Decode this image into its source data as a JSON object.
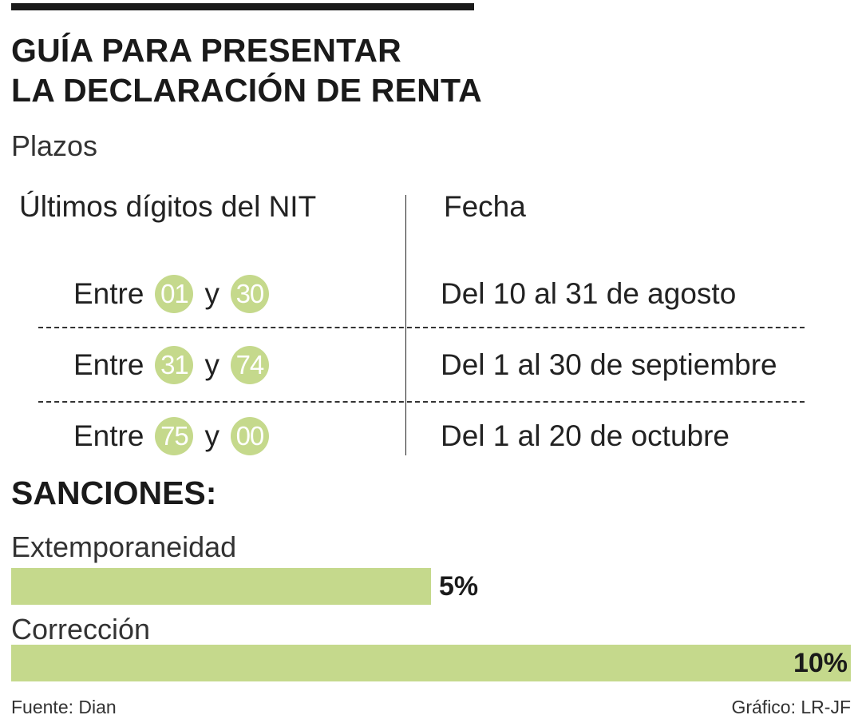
{
  "title_lines": [
    "GUÍA PARA PRESENTAR",
    "LA DECLARACIÓN DE RENTA"
  ],
  "subtitle": "Plazos",
  "table": {
    "headers": [
      "Últimos dígitos del NIT",
      "Fecha"
    ],
    "rows": [
      {
        "word": "Entre",
        "from": "01",
        "conj": "y",
        "to": "30",
        "date": "Del 10 al 31 de agosto"
      },
      {
        "word": "Entre",
        "from": "31",
        "conj": "y",
        "to": "74",
        "date": "Del 1 al 30 de septiembre"
      },
      {
        "word": "Entre",
        "from": "75",
        "conj": "y",
        "to": "00",
        "date": "Del 1 al 20 de octubre"
      }
    ]
  },
  "colors": {
    "accent_green": "#c5d98c",
    "text": "#1a1a1a"
  },
  "chart_data": {
    "type": "bar",
    "title": "SANCIONES:",
    "categories": [
      "Extemporaneidad",
      "Corrección"
    ],
    "values": [
      5,
      10
    ],
    "value_labels": [
      "5%",
      "10%"
    ],
    "xlim": [
      0,
      10
    ],
    "grid": false
  },
  "footer": {
    "source": "Fuente: Dian",
    "credit": "Gráfico: LR-JF"
  }
}
